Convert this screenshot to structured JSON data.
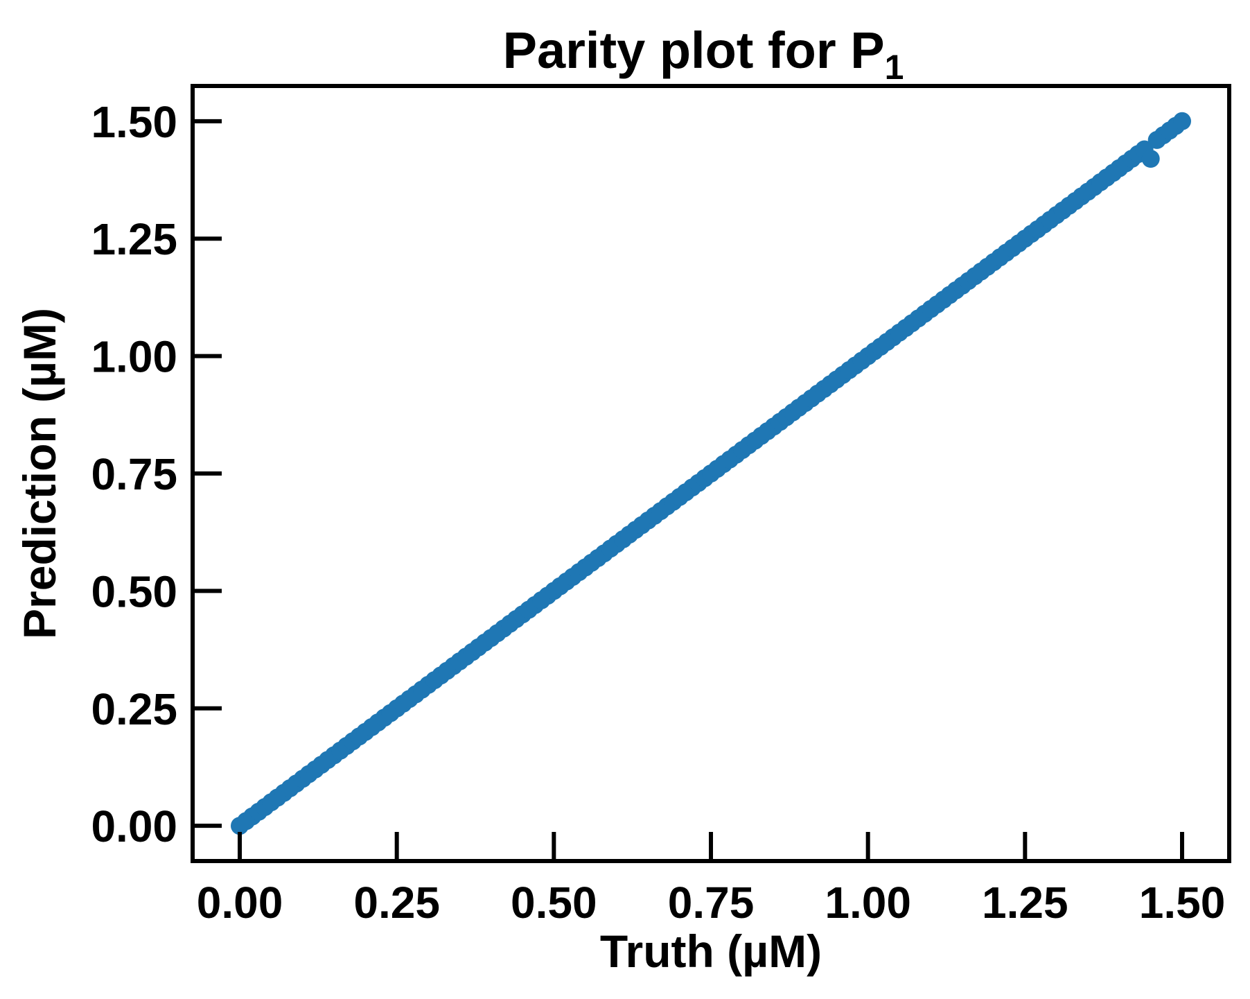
{
  "chart_data": {
    "type": "scatter",
    "title": "Parity plot for P",
    "title_subscript": "1",
    "xlabel": "Truth (µM)",
    "ylabel": "Prediction (µM)",
    "xlim": [
      -0.075,
      1.575
    ],
    "ylim": [
      -0.075,
      1.575
    ],
    "xticks": [
      0.0,
      0.25,
      0.5,
      0.75,
      1.0,
      1.25,
      1.5
    ],
    "yticks": [
      0.0,
      0.25,
      0.5,
      0.75,
      1.0,
      1.25,
      1.5
    ],
    "xtick_labels": [
      "0.00",
      "0.25",
      "0.50",
      "0.75",
      "1.00",
      "1.25",
      "1.50"
    ],
    "ytick_labels": [
      "0.00",
      "0.25",
      "0.50",
      "0.75",
      "1.00",
      "1.25",
      "1.50"
    ],
    "grid": false,
    "legend": "none",
    "marker_color": "#1f77b4",
    "series": [
      {
        "x": [
          0.0,
          0.01,
          0.02,
          0.03,
          0.04,
          0.05,
          0.06,
          0.07,
          0.08,
          0.09,
          0.1,
          0.11,
          0.12,
          0.13,
          0.14,
          0.15,
          0.16,
          0.17,
          0.18,
          0.19,
          0.2,
          0.21,
          0.22,
          0.23,
          0.24,
          0.25,
          0.26,
          0.27,
          0.28,
          0.29,
          0.3,
          0.31,
          0.32,
          0.33,
          0.34,
          0.35,
          0.36,
          0.37,
          0.38,
          0.39,
          0.4,
          0.41,
          0.42,
          0.43,
          0.44,
          0.45,
          0.46,
          0.47,
          0.48,
          0.49,
          0.5,
          0.51,
          0.52,
          0.53,
          0.54,
          0.55,
          0.56,
          0.57,
          0.58,
          0.59,
          0.6,
          0.61,
          0.62,
          0.63,
          0.64,
          0.65,
          0.66,
          0.67,
          0.68,
          0.69,
          0.7,
          0.71,
          0.72,
          0.73,
          0.74,
          0.75,
          0.76,
          0.77,
          0.78,
          0.79,
          0.8,
          0.81,
          0.82,
          0.83,
          0.84,
          0.85,
          0.86,
          0.87,
          0.88,
          0.89,
          0.9,
          0.91,
          0.92,
          0.93,
          0.94,
          0.95,
          0.96,
          0.97,
          0.98,
          0.99,
          1.0,
          1.01,
          1.02,
          1.03,
          1.04,
          1.05,
          1.06,
          1.07,
          1.08,
          1.09,
          1.1,
          1.11,
          1.12,
          1.13,
          1.14,
          1.15,
          1.16,
          1.17,
          1.18,
          1.19,
          1.2,
          1.21,
          1.22,
          1.23,
          1.24,
          1.25,
          1.26,
          1.27,
          1.28,
          1.29,
          1.3,
          1.31,
          1.32,
          1.33,
          1.34,
          1.35,
          1.36,
          1.37,
          1.38,
          1.39,
          1.4,
          1.41,
          1.42,
          1.43,
          1.44,
          1.45,
          1.46,
          1.47,
          1.48,
          1.49,
          1.5
        ],
        "y": [
          0.0,
          0.01,
          0.02,
          0.03,
          0.04,
          0.05,
          0.06,
          0.07,
          0.08,
          0.09,
          0.1,
          0.11,
          0.12,
          0.13,
          0.14,
          0.15,
          0.16,
          0.17,
          0.18,
          0.19,
          0.2,
          0.21,
          0.22,
          0.23,
          0.24,
          0.25,
          0.26,
          0.27,
          0.28,
          0.29,
          0.3,
          0.31,
          0.32,
          0.33,
          0.34,
          0.35,
          0.36,
          0.37,
          0.38,
          0.39,
          0.4,
          0.41,
          0.42,
          0.43,
          0.44,
          0.45,
          0.46,
          0.47,
          0.48,
          0.49,
          0.5,
          0.51,
          0.52,
          0.53,
          0.54,
          0.55,
          0.56,
          0.57,
          0.58,
          0.59,
          0.6,
          0.61,
          0.62,
          0.63,
          0.64,
          0.65,
          0.66,
          0.67,
          0.68,
          0.69,
          0.7,
          0.71,
          0.72,
          0.73,
          0.74,
          0.75,
          0.76,
          0.77,
          0.78,
          0.79,
          0.8,
          0.81,
          0.82,
          0.83,
          0.84,
          0.85,
          0.86,
          0.87,
          0.88,
          0.89,
          0.9,
          0.91,
          0.92,
          0.93,
          0.94,
          0.95,
          0.96,
          0.97,
          0.98,
          0.99,
          1.0,
          1.01,
          1.02,
          1.03,
          1.04,
          1.05,
          1.06,
          1.07,
          1.08,
          1.09,
          1.1,
          1.11,
          1.12,
          1.13,
          1.14,
          1.15,
          1.16,
          1.17,
          1.18,
          1.19,
          1.2,
          1.21,
          1.22,
          1.23,
          1.24,
          1.25,
          1.26,
          1.27,
          1.28,
          1.29,
          1.3,
          1.31,
          1.32,
          1.33,
          1.34,
          1.35,
          1.36,
          1.37,
          1.38,
          1.39,
          1.4,
          1.41,
          1.42,
          1.43,
          1.44,
          1.42,
          1.46,
          1.47,
          1.48,
          1.49,
          1.5
        ]
      }
    ]
  }
}
